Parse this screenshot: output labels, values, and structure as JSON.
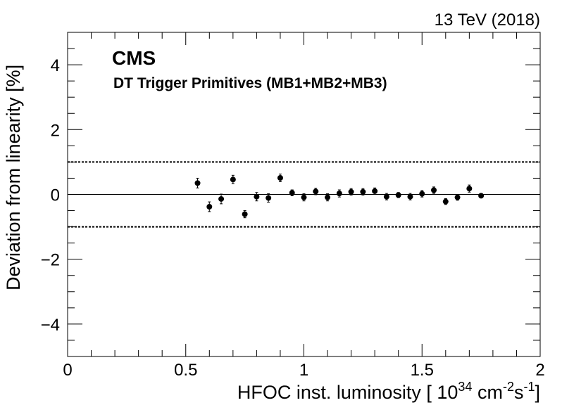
{
  "header": {
    "energy_label": "13 TeV (2018)"
  },
  "chart_data": {
    "type": "scatter",
    "experiment": "CMS",
    "subtitle": "DT Trigger Primitives (MB1+MB2+MB3)",
    "xlabel": "HFOC inst. luminosity [ 10",
    "xlabel_exp1": "34",
    "xlabel_mid": " cm",
    "xlabel_exp2": "-2",
    "xlabel_tail": "s",
    "xlabel_exp3": "-1",
    "xlabel_end": "]",
    "ylabel": "Deviation from linearity [%]",
    "xlim": [
      0,
      2
    ],
    "ylim": [
      -5,
      5
    ],
    "xticks": [
      0,
      0.5,
      1,
      1.5,
      2
    ],
    "xtick_labels": [
      "0",
      "0.5",
      "1",
      "1.5",
      "2"
    ],
    "yticks": [
      -4,
      -2,
      0,
      2,
      4
    ],
    "ytick_labels": [
      "−4",
      "−2",
      "0",
      "2",
      "4"
    ],
    "reference_lines": [
      {
        "y": 0,
        "style": "solid"
      },
      {
        "y": 1,
        "style": "dotted"
      },
      {
        "y": -1,
        "style": "dotted"
      }
    ],
    "series": [
      {
        "x": [
          0.55,
          0.6,
          0.65,
          0.7,
          0.75,
          0.8,
          0.85,
          0.9,
          0.95,
          1.0,
          1.05,
          1.1,
          1.15,
          1.2,
          1.25,
          1.3,
          1.35,
          1.4,
          1.45,
          1.5,
          1.55,
          1.6,
          1.65,
          1.7,
          1.75
        ],
        "y": [
          0.35,
          -0.38,
          -0.14,
          0.46,
          -0.61,
          -0.07,
          -0.11,
          0.51,
          0.05,
          -0.09,
          0.09,
          -0.09,
          0.03,
          0.08,
          0.08,
          0.1,
          -0.07,
          -0.02,
          -0.07,
          0.02,
          0.13,
          -0.22,
          -0.09,
          0.18,
          -0.04
        ],
        "yerr": [
          0.15,
          0.15,
          0.15,
          0.13,
          0.11,
          0.13,
          0.13,
          0.12,
          0.09,
          0.11,
          0.1,
          0.11,
          0.11,
          0.1,
          0.1,
          0.1,
          0.1,
          0.08,
          0.1,
          0.1,
          0.1,
          0.09,
          0.09,
          0.11,
          0.07
        ]
      }
    ],
    "marker_color": "#000000",
    "line_color": "#000000"
  }
}
